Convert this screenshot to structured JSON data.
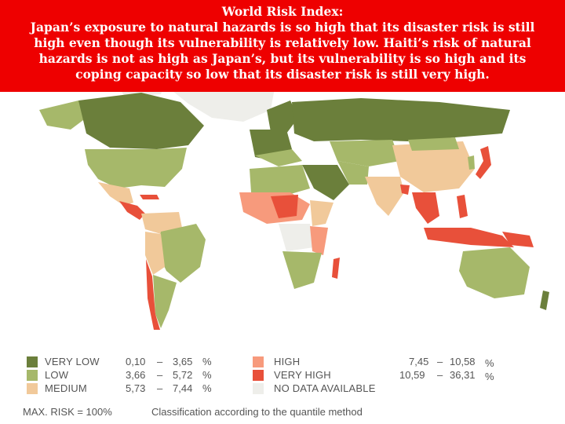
{
  "title": {
    "line1": "World Risk Index:",
    "line2": "Japan’s exposure to natural hazards is so high that its disaster risk is still",
    "line3": "high even though its vulnerability is relatively low.  Haiti’s risk of natural",
    "line4": "hazards is not as high as Japan’s, but its vulnerability is so high and its",
    "line5": "coping capacity so low that its disaster risk is still very high."
  },
  "legend": {
    "very_low": {
      "label": "VERY LOW",
      "min": "0,10",
      "dash": "–",
      "max": "3,65",
      "unit": "%",
      "color": "#6b7f3b"
    },
    "low": {
      "label": "LOW",
      "min": "3,66",
      "dash": "–",
      "max": "5,72",
      "unit": "%",
      "color": "#a6b86a"
    },
    "medium": {
      "label": "MEDIUM",
      "min": "5,73",
      "dash": "–",
      "max": "7,44",
      "unit": "%",
      "color": "#f1c99a"
    },
    "high": {
      "label": "HIGH",
      "min": "7,45",
      "dash": "–",
      "max": "10,58",
      "unit": "%",
      "color": "#f79a7c"
    },
    "very_high": {
      "label": "VERY HIGH",
      "min": "10,59",
      "dash": "–",
      "max": "36,31",
      "unit": "%",
      "color": "#e8503a"
    },
    "no_data": {
      "label": "NO DATA AVAILABLE",
      "color": "#eeeeea"
    }
  },
  "footer": {
    "max_risk": "MAX. RISK = 100%",
    "method": "Classification according to the quantile method"
  },
  "colors": {
    "banner": "#ee0000",
    "ocean": "#ffffff",
    "very_low": "#6b7f3b",
    "low": "#a6b86a",
    "medium": "#f1c99a",
    "high": "#f79a7c",
    "very_high": "#e8503a",
    "no_data": "#eeeeea"
  }
}
